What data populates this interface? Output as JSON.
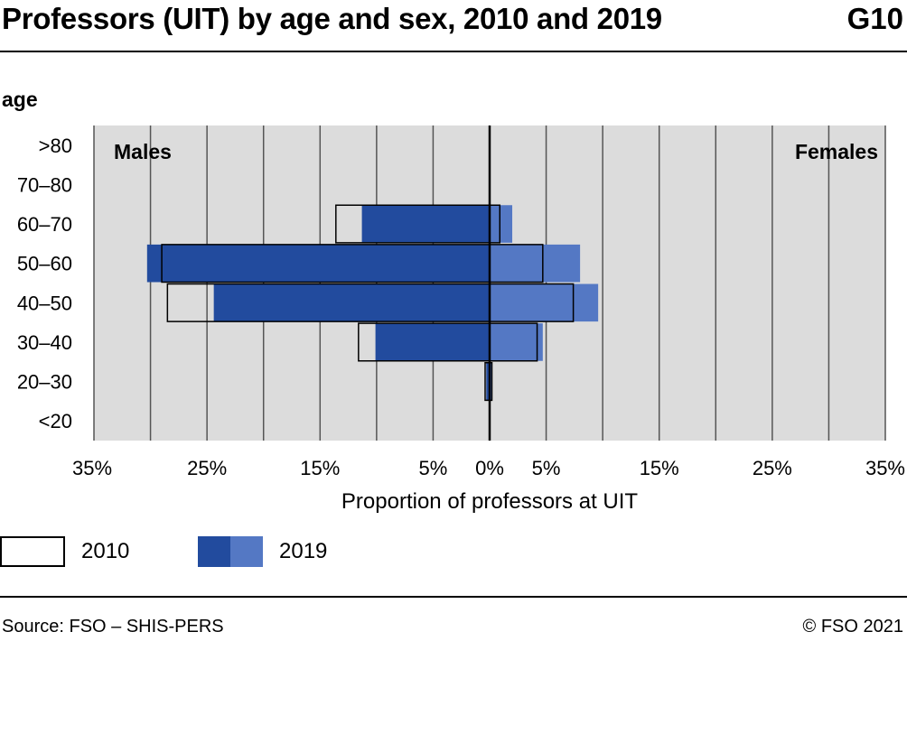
{
  "header": {
    "title": "Professors (UIT) by age and sex, 2010 and 2019",
    "code": "G10"
  },
  "footer": {
    "source": "Source: FSO – SHIS-PERS",
    "copyright": "© FSO 2021"
  },
  "chart_data": {
    "type": "bar",
    "orientation": "horizontal",
    "layout": "population-pyramid",
    "categories": [
      ">80",
      "70–80",
      "60–70",
      "50–60",
      "40–50",
      "30–40",
      "20–30",
      "<20"
    ],
    "ylabel": "age",
    "xlabel": "Proportion of professors at UIT",
    "xlim": [
      -35,
      35
    ],
    "x_ticks": [
      {
        "value": -35,
        "label": "35%"
      },
      {
        "value": -25,
        "label": "25%"
      },
      {
        "value": -15,
        "label": "15%"
      },
      {
        "value": -5,
        "label": "5%"
      },
      {
        "value": 0,
        "label": "0%"
      },
      {
        "value": 5,
        "label": "5%"
      },
      {
        "value": 15,
        "label": "15%"
      },
      {
        "value": 25,
        "label": "25%"
      },
      {
        "value": 35,
        "label": "35%"
      }
    ],
    "gridlines_every": 5,
    "side_labels": {
      "left": "Males",
      "right": "Females"
    },
    "legend": [
      {
        "label": "2010",
        "style": "outline"
      },
      {
        "label": "2019",
        "style": "filled"
      }
    ],
    "series": [
      {
        "name": "2010",
        "males": [
          0,
          0,
          13.6,
          29.0,
          28.5,
          11.6,
          0.4,
          0
        ],
        "females": [
          0,
          0,
          0.9,
          4.7,
          7.4,
          4.2,
          0.2,
          0
        ]
      },
      {
        "name": "2019",
        "males": [
          0,
          0,
          11.3,
          30.3,
          24.4,
          10.1,
          0.3,
          0
        ],
        "females": [
          0,
          0,
          2.0,
          8.0,
          9.6,
          4.7,
          0.2,
          0
        ]
      }
    ],
    "colors": {
      "males_2019": "#224b9e",
      "females_2019": "#5478c4",
      "outline_2010": "#000000",
      "plot_bg": "#dcdcdc",
      "grid": "#555555"
    }
  }
}
